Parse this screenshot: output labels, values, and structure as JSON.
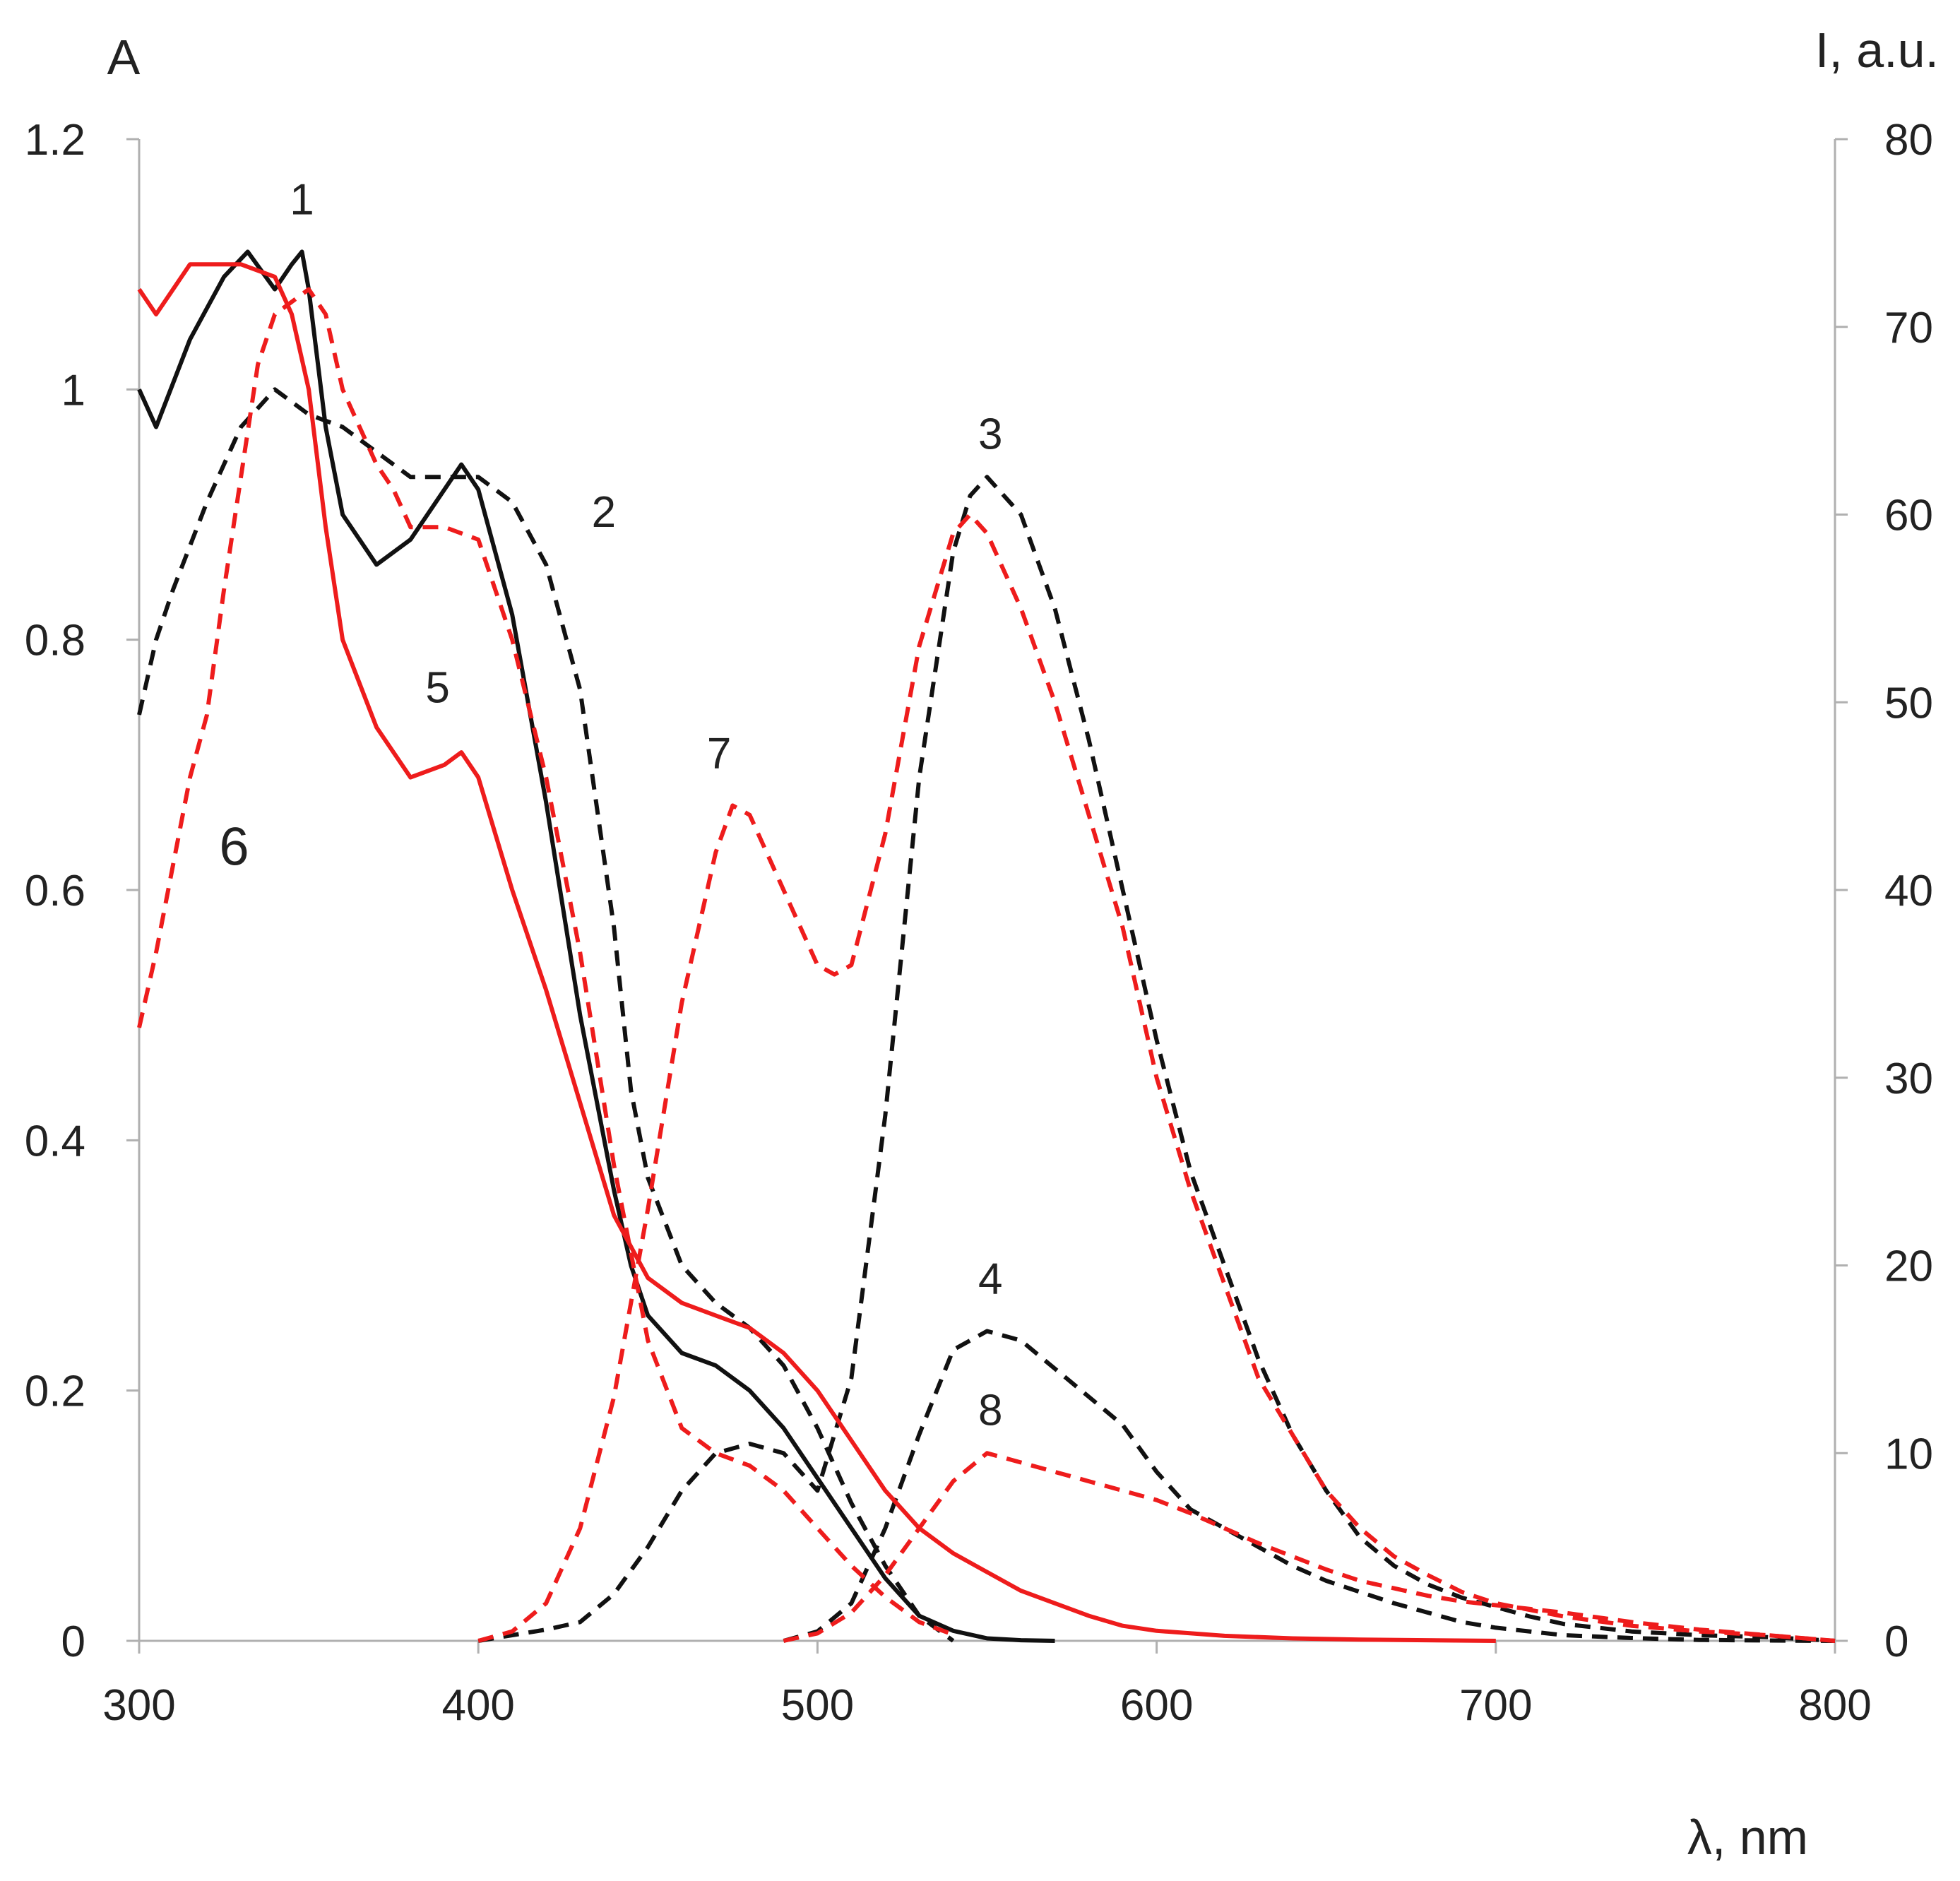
{
  "chart_data": {
    "type": "line",
    "title": "",
    "xlabel": "λ, nm",
    "ylabel_left": "A",
    "ylabel_right": "I, a.u.",
    "xlim": [
      300,
      800
    ],
    "ylim_left": [
      0,
      1.2
    ],
    "ylim_right": [
      0,
      80
    ],
    "grid": false,
    "x_ticks": [
      "300",
      "400",
      "500",
      "600",
      "700",
      "800"
    ],
    "y_left_ticks": [
      "0",
      "0.2",
      "0.4",
      "0.6",
      "0.8",
      "1",
      "1.2"
    ],
    "y_right_ticks": [
      "0",
      "10",
      "20",
      "30",
      "40",
      "50",
      "60",
      "70",
      "80"
    ],
    "colors": {
      "black": "#111111",
      "red": "#ee1c1c",
      "axis": "#b0b0b0"
    },
    "series": [
      {
        "name": "1",
        "axis": "left",
        "color": "black",
        "dash": false,
        "x": [
          300,
          305,
          315,
          325,
          332,
          340,
          345,
          348,
          350,
          355,
          360,
          370,
          380,
          390,
          395,
          400,
          410,
          420,
          430,
          440,
          445,
          450,
          460,
          470,
          480,
          490,
          500,
          510,
          520,
          530,
          540,
          550,
          560,
          570
        ],
        "y": [
          1.0,
          0.97,
          1.04,
          1.09,
          1.11,
          1.08,
          1.1,
          1.11,
          1.08,
          0.97,
          0.9,
          0.86,
          0.88,
          0.92,
          0.94,
          0.92,
          0.82,
          0.67,
          0.5,
          0.36,
          0.3,
          0.26,
          0.23,
          0.22,
          0.2,
          0.17,
          0.13,
          0.09,
          0.05,
          0.02,
          0.008,
          0.002,
          0.0005,
          0
        ],
        "label": "1",
        "label_x": 348,
        "label_y": 1.14
      },
      {
        "name": "2",
        "axis": "left",
        "color": "black",
        "dash": true,
        "x": [
          300,
          305,
          310,
          320,
          330,
          340,
          345,
          350,
          360,
          370,
          380,
          390,
          400,
          410,
          420,
          430,
          440,
          445,
          450,
          460,
          470,
          480,
          490,
          500,
          510,
          520,
          530,
          540
        ],
        "y": [
          0.74,
          0.8,
          0.84,
          0.91,
          0.97,
          1.0,
          0.99,
          0.98,
          0.97,
          0.95,
          0.93,
          0.93,
          0.93,
          0.91,
          0.86,
          0.76,
          0.57,
          0.44,
          0.37,
          0.3,
          0.27,
          0.25,
          0.22,
          0.17,
          0.11,
          0.06,
          0.02,
          0
        ],
        "label": "2",
        "label_x": 437,
        "label_y": 0.89
      },
      {
        "name": "3",
        "axis": "right",
        "color": "black",
        "dash": true,
        "x": [
          400,
          410,
          420,
          430,
          440,
          450,
          460,
          470,
          480,
          490,
          500,
          510,
          520,
          530,
          540,
          545,
          550,
          560,
          570,
          580,
          590,
          600,
          610,
          620,
          630,
          640,
          650,
          660,
          670,
          680,
          690,
          700,
          710,
          720,
          740,
          760,
          780,
          800
        ],
        "y": [
          0,
          0.3,
          0.6,
          1,
          2.5,
          5,
          8,
          10,
          10.5,
          10,
          8,
          14,
          28,
          46,
          58,
          61,
          62,
          60,
          55,
          48,
          40,
          32,
          25,
          20,
          15,
          11,
          8,
          5.5,
          4,
          3,
          2.3,
          1.8,
          1.3,
          0.9,
          0.5,
          0.3,
          0.2,
          0
        ],
        "label": "3",
        "label_x": 551,
        "label_y": 63.5
      },
      {
        "name": "4",
        "axis": "right",
        "color": "black",
        "dash": true,
        "x": [
          490,
          500,
          510,
          520,
          530,
          540,
          550,
          560,
          570,
          580,
          590,
          600,
          610,
          620,
          630,
          640,
          650,
          660,
          670,
          680,
          690,
          700,
          720,
          740,
          760,
          780,
          800
        ],
        "y": [
          0,
          0.5,
          2,
          6,
          11,
          15.5,
          16.5,
          16,
          14.5,
          13,
          11.5,
          9,
          7,
          6,
          5,
          4,
          3.2,
          2.6,
          2,
          1.5,
          1,
          0.7,
          0.3,
          0.15,
          0.05,
          0.02,
          0
        ],
        "label": "4",
        "label_x": 551,
        "label_y": 18.5
      },
      {
        "name": "5",
        "axis": "left",
        "color": "red",
        "dash": false,
        "x": [
          300,
          305,
          315,
          325,
          330,
          340,
          345,
          350,
          355,
          360,
          370,
          380,
          390,
          395,
          400,
          410,
          420,
          430,
          440,
          450,
          460,
          470,
          480,
          490,
          500,
          510,
          520,
          530,
          540,
          550,
          560,
          570,
          580,
          590,
          600,
          620,
          640,
          660,
          700
        ],
        "y": [
          1.08,
          1.06,
          1.1,
          1.1,
          1.1,
          1.09,
          1.06,
          1.0,
          0.89,
          0.8,
          0.73,
          0.69,
          0.7,
          0.71,
          0.69,
          0.6,
          0.52,
          0.43,
          0.34,
          0.29,
          0.27,
          0.26,
          0.25,
          0.23,
          0.2,
          0.16,
          0.12,
          0.09,
          0.07,
          0.055,
          0.04,
          0.03,
          0.02,
          0.012,
          0.008,
          0.004,
          0.002,
          0.001,
          0
        ],
        "label": "5",
        "label_x": 388,
        "label_y": 0.75
      },
      {
        "name": "6",
        "axis": "left",
        "color": "red",
        "dash": true,
        "x": [
          300,
          305,
          310,
          315,
          320,
          325,
          330,
          335,
          340,
          345,
          350,
          355,
          360,
          365,
          370,
          375,
          380,
          390,
          400,
          410,
          420,
          430,
          440,
          450,
          460,
          470,
          480,
          490,
          500,
          510,
          520,
          530,
          540
        ],
        "y": [
          0.49,
          0.55,
          0.62,
          0.69,
          0.74,
          0.84,
          0.93,
          1.02,
          1.06,
          1.07,
          1.08,
          1.06,
          1.0,
          0.97,
          0.94,
          0.92,
          0.89,
          0.89,
          0.88,
          0.8,
          0.69,
          0.55,
          0.38,
          0.24,
          0.17,
          0.15,
          0.14,
          0.12,
          0.09,
          0.06,
          0.035,
          0.015,
          0.005
        ],
        "label": "6",
        "label_x": 328,
        "label_y": 0.62
      },
      {
        "name": "7",
        "axis": "right",
        "color": "red",
        "dash": true,
        "x": [
          400,
          410,
          420,
          430,
          440,
          450,
          460,
          470,
          475,
          480,
          490,
          500,
          505,
          510,
          520,
          530,
          540,
          545,
          550,
          560,
          570,
          580,
          590,
          600,
          610,
          620,
          630,
          640,
          650,
          660,
          670,
          680,
          690,
          700,
          720,
          740,
          760,
          780,
          800
        ],
        "y": [
          0,
          0.5,
          2,
          6,
          13,
          23,
          34,
          42,
          44.5,
          44,
          40,
          36,
          35.5,
          36,
          43,
          53,
          59,
          60,
          59,
          55,
          50,
          44,
          38,
          30,
          24,
          19,
          14,
          11,
          8,
          6,
          4.5,
          3.5,
          2.6,
          2,
          1.3,
          0.8,
          0.5,
          0.3,
          0
        ],
        "label": "7",
        "label_x": 471,
        "label_y": 46.5
      },
      {
        "name": "8",
        "axis": "right",
        "color": "red",
        "dash": true,
        "x": [
          490,
          500,
          510,
          520,
          530,
          540,
          550,
          560,
          570,
          580,
          590,
          600,
          610,
          620,
          630,
          640,
          650,
          660,
          670,
          680,
          690,
          700,
          720,
          740,
          760,
          780,
          800
        ],
        "y": [
          0,
          0.4,
          1.5,
          3.5,
          6,
          8.5,
          10,
          9.5,
          9,
          8.5,
          8,
          7.5,
          6.8,
          6,
          5.2,
          4.5,
          3.8,
          3.2,
          2.8,
          2.4,
          2.1,
          1.9,
          1.5,
          1,
          0.6,
          0.3,
          0
        ],
        "label": "8",
        "label_x": 551,
        "label_y": 11.5
      }
    ]
  }
}
